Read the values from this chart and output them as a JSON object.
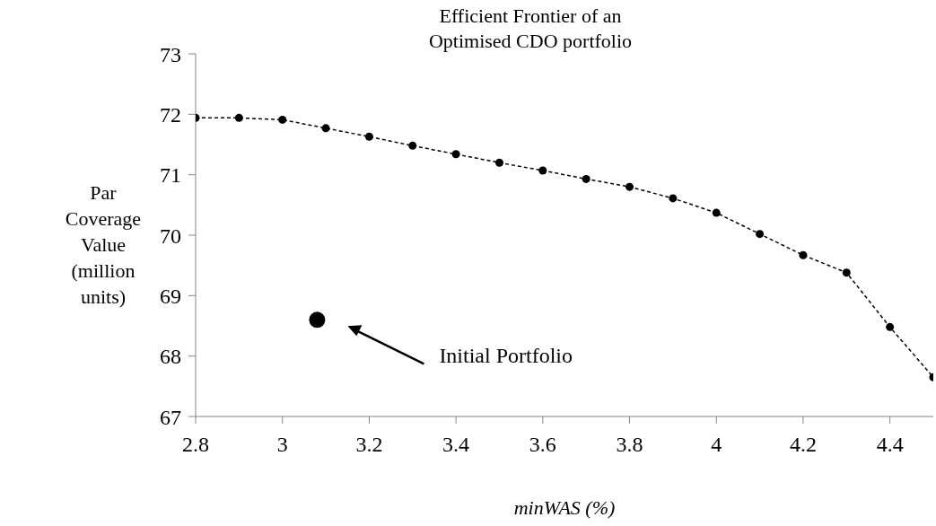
{
  "chart_data": {
    "type": "line",
    "title": "Efficient Frontier of an Optimised CDO portfolio",
    "xlabel": "minWAS (%)",
    "ylabel": "Par Coverage Value (million units)",
    "x": [
      2.8,
      2.9,
      3.0,
      3.1,
      3.2,
      3.3,
      3.4,
      3.5,
      3.6,
      3.7,
      3.8,
      3.9,
      4.0,
      4.1,
      4.2,
      4.3,
      4.4,
      4.5
    ],
    "series": [
      {
        "color": "#000000",
        "marker": "circle",
        "line_style": "dashed",
        "values": [
          71.94,
          71.94,
          71.91,
          71.77,
          71.63,
          71.48,
          71.34,
          71.2,
          71.07,
          70.93,
          70.8,
          70.61,
          70.37,
          70.02,
          69.67,
          69.38,
          68.48,
          67.65
        ]
      },
      {
        "type": "scatter",
        "color": "#000000",
        "marker": "circle",
        "x": [
          3.08
        ],
        "values": [
          68.6
        ]
      }
    ],
    "xlim": [
      2.8,
      4.5
    ],
    "xticks": [
      2.8,
      3,
      3.2,
      3.4,
      3.6,
      3.8,
      4,
      4.2,
      4.4
    ],
    "ylim": [
      67,
      73
    ],
    "yticks": [
      67,
      68,
      69,
      70,
      71,
      72,
      73
    ],
    "grid": false,
    "legend": false,
    "annotations": [
      "Initial Portfolio"
    ]
  }
}
